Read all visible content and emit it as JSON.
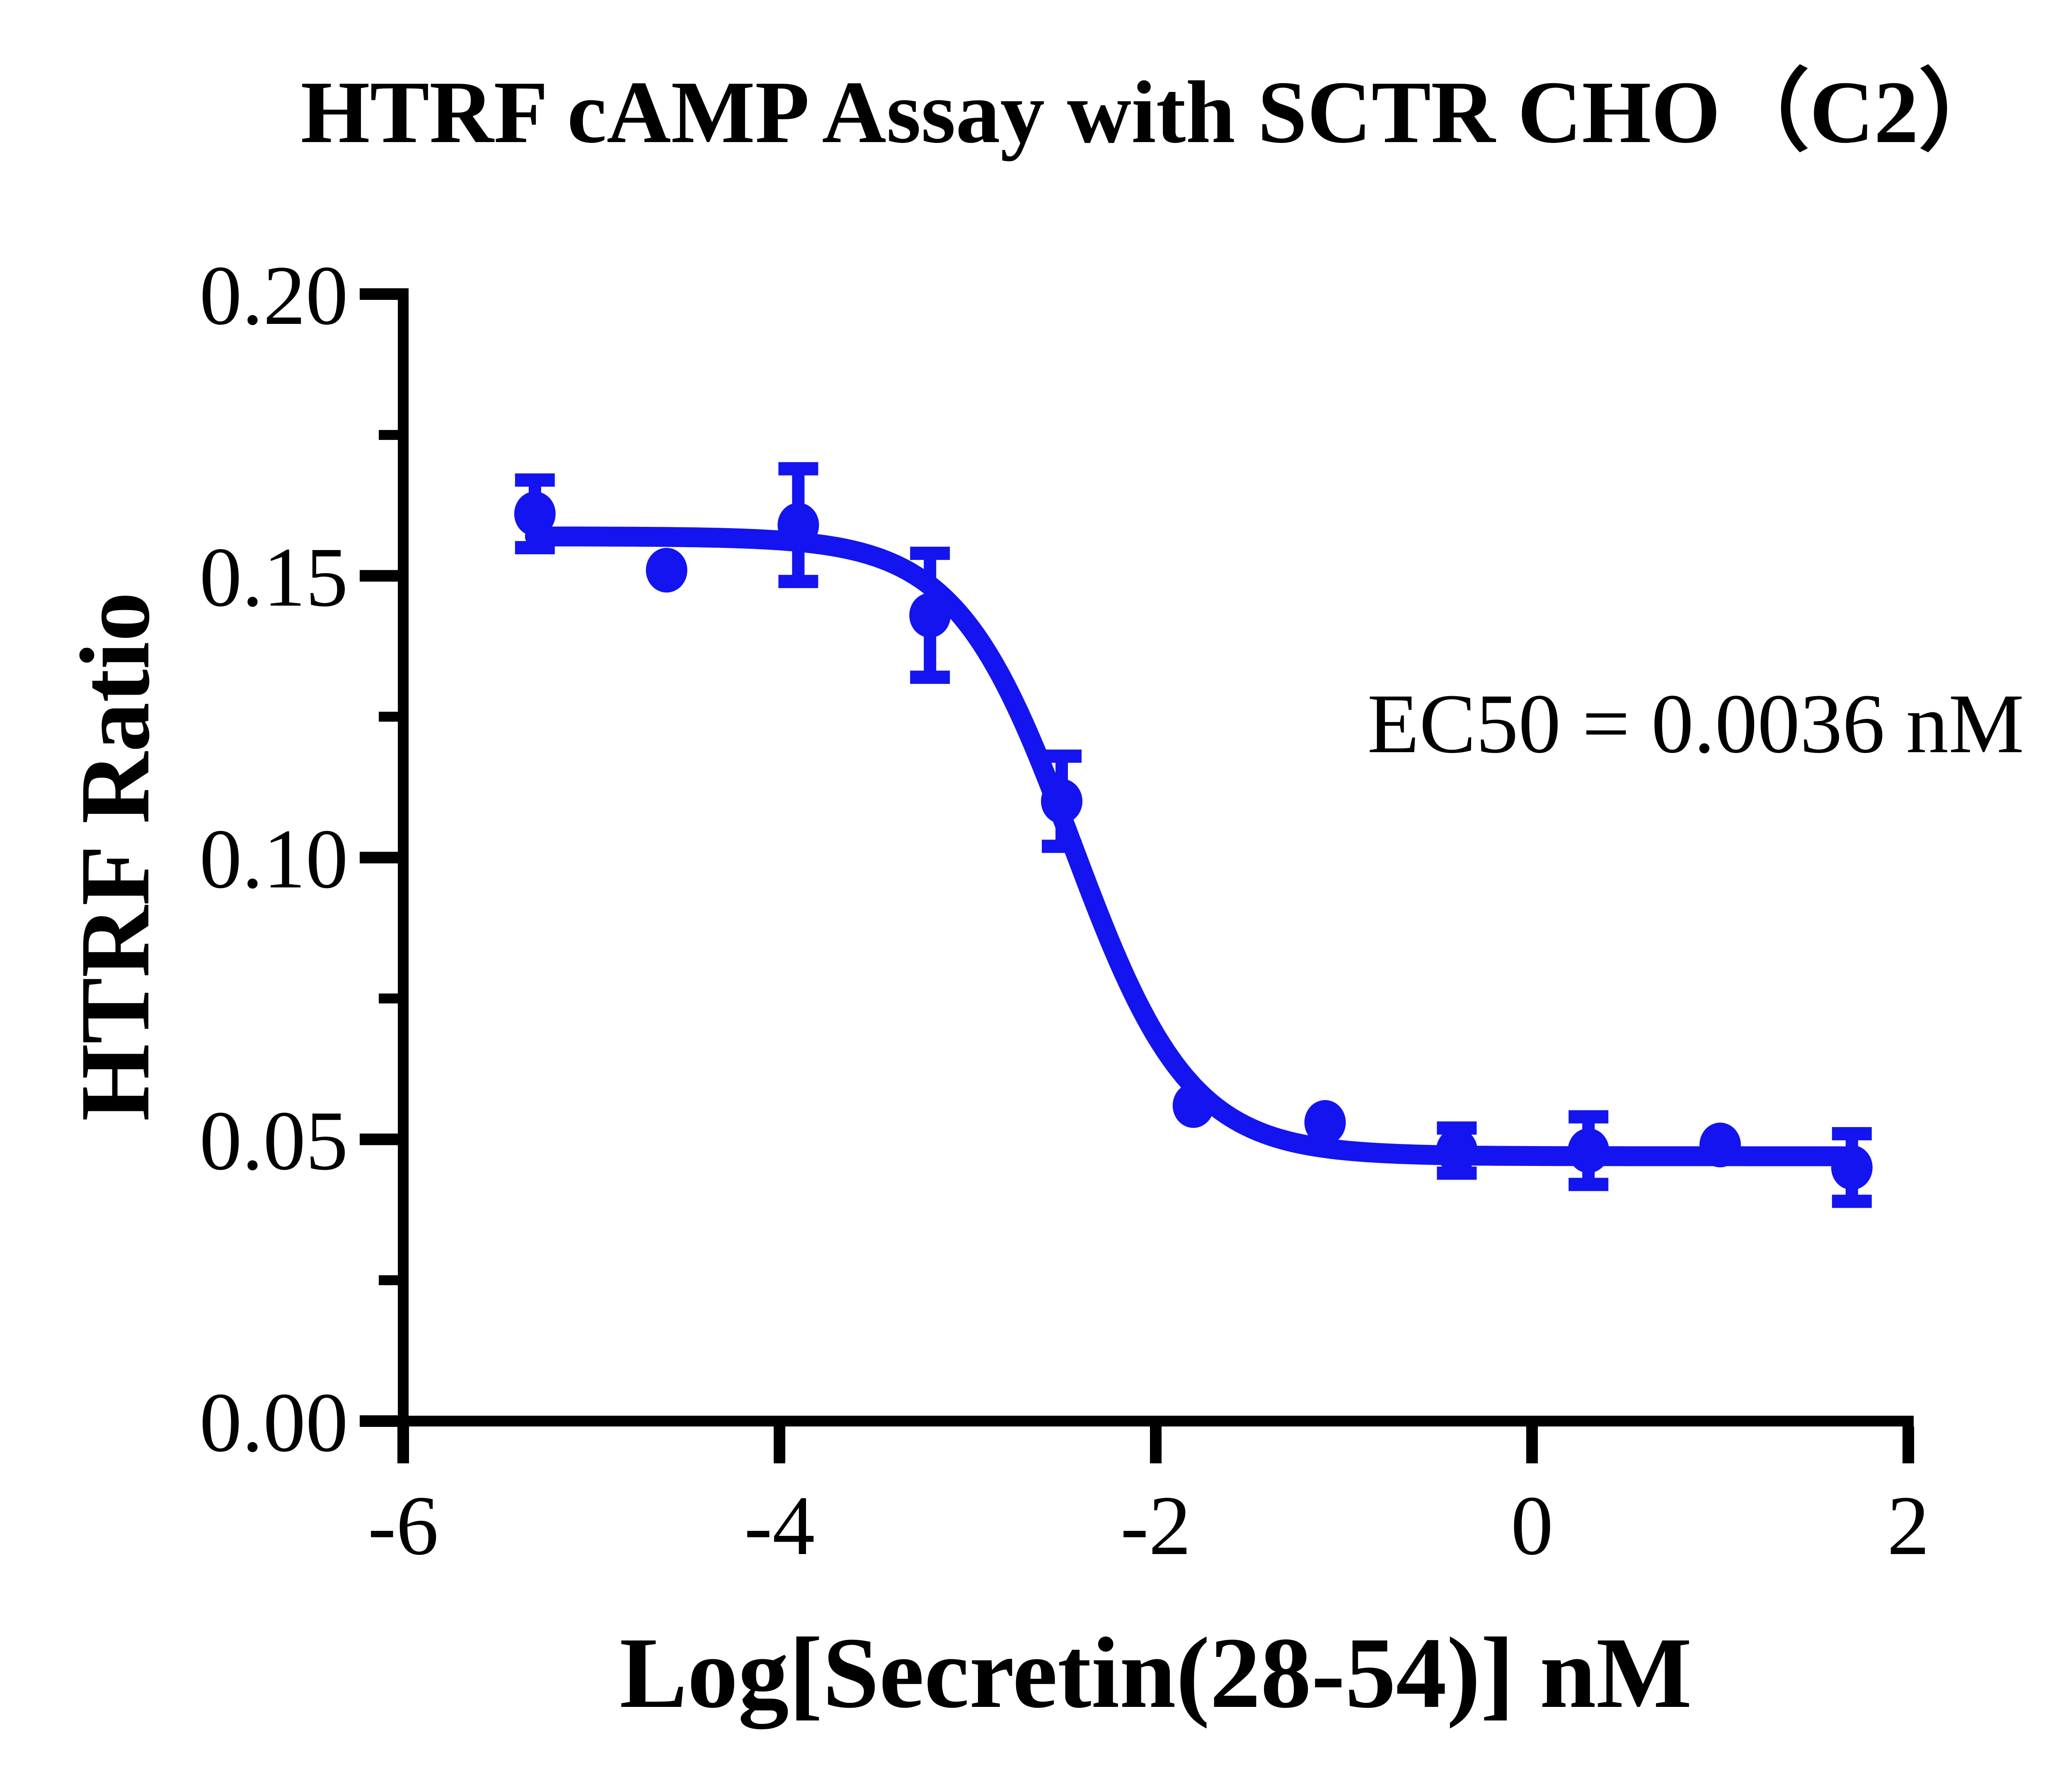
{
  "figure": {
    "background_color": "#ffffff",
    "text_color": "#000000"
  },
  "chart_data": {
    "type": "scatter",
    "title": "HTRF cAMP Assay with SCTR CHO（C2）",
    "xlabel": "Log[Secretin(28-54)] nM",
    "ylabel": "HTRF Ratio",
    "xlim": [
      -6,
      2
    ],
    "ylim": [
      0,
      0.2
    ],
    "x_ticks": [
      -6,
      -4,
      -2,
      0,
      2
    ],
    "x_tick_labels": [
      "-6",
      "-4",
      "-2",
      "0",
      "2"
    ],
    "y_ticks": [
      0.0,
      0.05,
      0.1,
      0.15,
      0.2
    ],
    "y_tick_labels": [
      "0.00",
      "0.05",
      "0.10",
      "0.15",
      "0.20"
    ],
    "y_minor_ticks": [
      0.025,
      0.075,
      0.125,
      0.175
    ],
    "grid": false,
    "legend": null,
    "axis_color": "#000000",
    "annotation": {
      "text": "EC50 = 0.0036 nM"
    },
    "series": [
      {
        "name": "Secretin(28-54)",
        "color": "#1414F0",
        "marker": "circle",
        "points": [
          {
            "x": -5.3,
            "y": 0.161,
            "err": 0.006
          },
          {
            "x": -4.6,
            "y": 0.151,
            "err": null
          },
          {
            "x": -3.9,
            "y": 0.159,
            "err": 0.01
          },
          {
            "x": -3.2,
            "y": 0.143,
            "err": 0.011
          },
          {
            "x": -2.5,
            "y": 0.11,
            "err": 0.008
          },
          {
            "x": -1.8,
            "y": 0.056,
            "err": null
          },
          {
            "x": -1.1,
            "y": 0.053,
            "err": null
          },
          {
            "x": -0.4,
            "y": 0.048,
            "err": 0.004
          },
          {
            "x": 0.3,
            "y": 0.048,
            "err": 0.006
          },
          {
            "x": 1.0,
            "y": 0.049,
            "err": null
          },
          {
            "x": 1.7,
            "y": 0.045,
            "err": 0.006
          }
        ]
      }
    ],
    "fit_curve": {
      "model": "four-parameter-logistic",
      "top": 0.157,
      "bottom": 0.047,
      "log_ec50": -2.44,
      "hill_slope": 1.4,
      "x_start": -5.3,
      "x_end": 1.7,
      "ec50_nM": 0.0036
    }
  }
}
